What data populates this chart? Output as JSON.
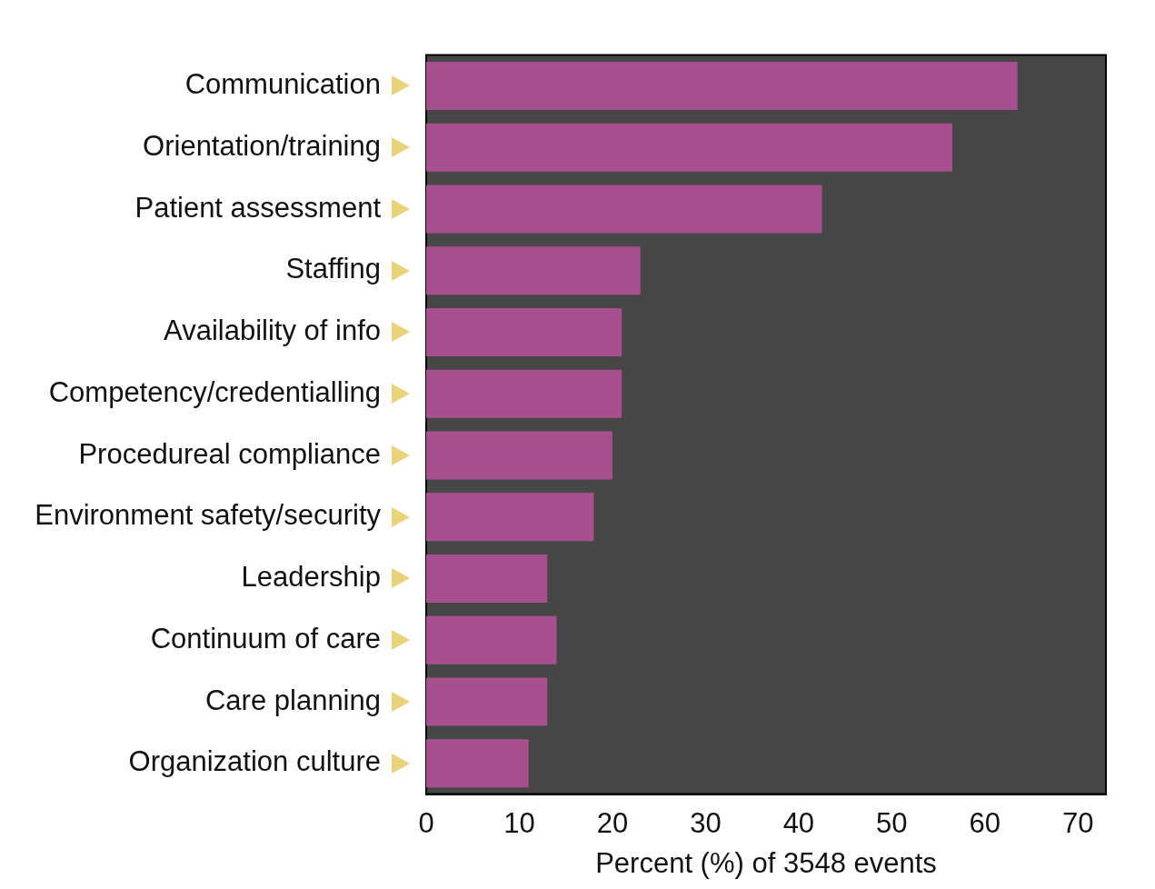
{
  "chart_data": {
    "type": "bar",
    "orientation": "horizontal",
    "xlabel": "Percent (%) of 3548 events",
    "categories": [
      "Communication",
      "Orientation/training",
      "Patient assessment",
      "Staffing",
      "Availability of info",
      "Competency/credentialling",
      "Procedureal compliance",
      "Environment safety/security",
      "Leadership",
      "Continuum of care",
      "Care planning",
      "Organization culture"
    ],
    "values": [
      63.5,
      56.5,
      42.5,
      23,
      21,
      21,
      20,
      18,
      13,
      14,
      13,
      11
    ],
    "color": "#a8508f",
    "xlim": [
      0,
      73
    ],
    "xticks": [
      0,
      10,
      20,
      30,
      40,
      50,
      60,
      70
    ],
    "grid": false
  }
}
